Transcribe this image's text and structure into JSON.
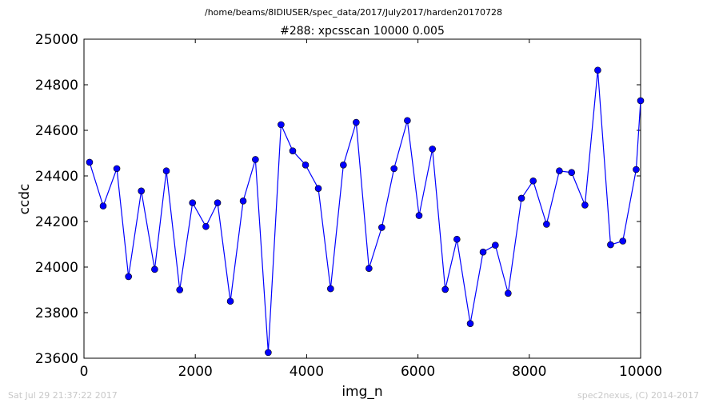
{
  "figure": {
    "suptitle": "/home/beams/8IDIUSER/spec_data/2017/July2017/harden20170728",
    "footer_left": "Sat Jul 29 21:37:22 2017",
    "footer_right": "spec2nexus, (C) 2014-2017"
  },
  "chart_data": {
    "type": "line",
    "title": "#288: xpcsscan 10000 0.005",
    "xlabel": "img_n",
    "ylabel": "ccdc",
    "xlim": [
      0,
      10000
    ],
    "ylim": [
      23600,
      25000
    ],
    "xticks": [
      0,
      2000,
      4000,
      6000,
      8000,
      10000
    ],
    "yticks": [
      23600,
      23800,
      24000,
      24200,
      24400,
      24600,
      24800,
      25000
    ],
    "xtick_labels": [
      "0",
      "2000",
      "4000",
      "6000",
      "8000",
      "10000"
    ],
    "ytick_labels": [
      "23600",
      "23800",
      "24000",
      "24200",
      "24400",
      "24600",
      "24800",
      "25000"
    ],
    "grid": false,
    "legend": false,
    "series": [
      {
        "color": "#0000ff",
        "marker": "circle",
        "x": [
          100,
          345,
          590,
          800,
          1030,
          1270,
          1480,
          1720,
          1950,
          2190,
          2400,
          2630,
          2860,
          3080,
          3310,
          3540,
          3750,
          3980,
          4210,
          4430,
          4660,
          4890,
          5120,
          5350,
          5570,
          5810,
          6020,
          6260,
          6490,
          6700,
          6940,
          7170,
          7390,
          7620,
          7860,
          8070,
          8310,
          8540,
          8760,
          9000,
          9230,
          9460,
          9680,
          9920,
          10000
        ],
        "y": [
          24460,
          24268,
          24432,
          23958,
          24334,
          23990,
          24422,
          23900,
          24282,
          24178,
          24282,
          23850,
          24290,
          24472,
          23625,
          24625,
          24510,
          24448,
          24345,
          23905,
          24448,
          24635,
          23994,
          24174,
          24432,
          24643,
          24226,
          24518,
          23902,
          24122,
          23752,
          24066,
          24096,
          23885,
          24302,
          24378,
          24188,
          24422,
          24415,
          24272,
          24864,
          24098,
          24114,
          24428,
          24730
        ]
      }
    ]
  }
}
